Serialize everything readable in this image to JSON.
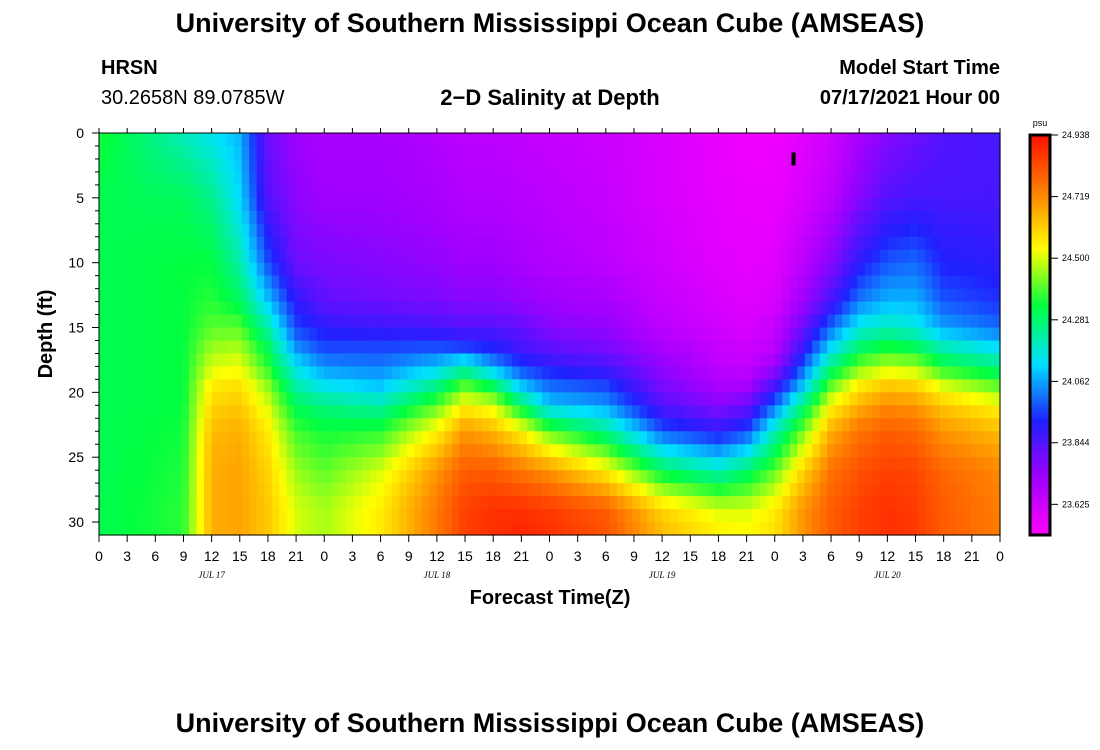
{
  "header": {
    "title": "University of Southern Mississippi Ocean Cube (AMSEAS)",
    "station": "HRSN",
    "coords": "30.2658N  89.0785W",
    "plot_title": "2−D Salinity at Depth",
    "start_label": "Model Start Time",
    "start_value": "07/17/2021 Hour 00"
  },
  "footer": {
    "title": "University of Southern Mississippi Ocean Cube (AMSEAS)"
  },
  "chart_data": {
    "type": "heatmap",
    "title": "2−D Salinity at Depth",
    "xlabel": "Forecast Time(Z)",
    "ylabel": "Depth (ft)",
    "xlim": [
      0,
      96
    ],
    "ylim": [
      31,
      0
    ],
    "x_ticks": [
      {
        "t": 0,
        "label": "0"
      },
      {
        "t": 3,
        "label": "3"
      },
      {
        "t": 6,
        "label": "6"
      },
      {
        "t": 9,
        "label": "9"
      },
      {
        "t": 12,
        "label": "12"
      },
      {
        "t": 15,
        "label": "15"
      },
      {
        "t": 18,
        "label": "18"
      },
      {
        "t": 21,
        "label": "21"
      },
      {
        "t": 24,
        "label": "0"
      },
      {
        "t": 27,
        "label": "3"
      },
      {
        "t": 30,
        "label": "6"
      },
      {
        "t": 33,
        "label": "9"
      },
      {
        "t": 36,
        "label": "12"
      },
      {
        "t": 39,
        "label": "15"
      },
      {
        "t": 42,
        "label": "18"
      },
      {
        "t": 45,
        "label": "21"
      },
      {
        "t": 48,
        "label": "0"
      },
      {
        "t": 51,
        "label": "3"
      },
      {
        "t": 54,
        "label": "6"
      },
      {
        "t": 57,
        "label": "9"
      },
      {
        "t": 60,
        "label": "12"
      },
      {
        "t": 63,
        "label": "15"
      },
      {
        "t": 66,
        "label": "18"
      },
      {
        "t": 69,
        "label": "21"
      },
      {
        "t": 72,
        "label": "0"
      },
      {
        "t": 75,
        "label": "3"
      },
      {
        "t": 78,
        "label": "6"
      },
      {
        "t": 81,
        "label": "9"
      },
      {
        "t": 84,
        "label": "12"
      },
      {
        "t": 87,
        "label": "15"
      },
      {
        "t": 90,
        "label": "18"
      },
      {
        "t": 93,
        "label": "21"
      },
      {
        "t": 96,
        "label": "0"
      }
    ],
    "date_labels": [
      {
        "t": 12,
        "label": "JUL 17"
      },
      {
        "t": 36,
        "label": "JUL 18"
      },
      {
        "t": 60,
        "label": "JUL 19"
      },
      {
        "t": 84,
        "label": "JUL 20"
      }
    ],
    "y_ticks": [
      0,
      5,
      10,
      15,
      20,
      25,
      30
    ],
    "colorbar": {
      "unit": "psu",
      "min": 23.516,
      "max": 24.938,
      "labels": [
        "24.938",
        "24.719",
        "24.500",
        "24.281",
        "24.062",
        "23.844",
        "23.625"
      ],
      "colors": [
        "#ff00ff",
        "#a000ff",
        "#2020ff",
        "#00e0ff",
        "#00ff40",
        "#ffff00",
        "#ff8000",
        "#ff1000"
      ]
    },
    "grid": {
      "times": [
        0,
        9,
        12,
        15,
        18,
        21,
        24,
        30,
        36,
        39,
        42,
        45,
        48,
        54,
        60,
        66,
        69,
        72,
        75,
        78,
        81,
        84,
        87,
        90,
        96
      ],
      "depths": [
        0,
        5,
        10,
        13,
        15,
        16.5,
        18,
        19.5,
        21,
        23,
        26,
        29,
        31
      ],
      "values": [
        [
          24.35,
          24.31,
          24.31,
          24.31,
          24.31,
          24.31,
          24.31,
          24.31,
          24.31,
          24.31,
          24.31,
          24.31,
          24.31
        ],
        [
          24.2,
          24.3,
          24.33,
          24.33,
          24.33,
          24.33,
          24.33,
          24.33,
          24.33,
          24.34,
          24.35,
          24.36,
          24.36
        ],
        [
          24.14,
          24.25,
          24.33,
          24.36,
          24.4,
          24.45,
          24.5,
          24.56,
          24.6,
          24.64,
          24.66,
          24.66,
          24.66
        ],
        [
          24.08,
          24.12,
          24.22,
          24.3,
          24.4,
          24.46,
          24.52,
          24.58,
          24.62,
          24.66,
          24.68,
          24.68,
          24.68
        ],
        [
          23.8,
          23.84,
          23.97,
          24.1,
          24.22,
          24.3,
          24.36,
          24.44,
          24.5,
          24.56,
          24.6,
          24.62,
          24.62
        ],
        [
          23.72,
          23.75,
          23.8,
          23.9,
          23.96,
          24.04,
          24.14,
          24.22,
          24.3,
          24.38,
          24.45,
          24.5,
          24.5
        ],
        [
          23.7,
          23.72,
          23.78,
          23.82,
          23.9,
          23.96,
          24.04,
          24.14,
          24.26,
          24.34,
          24.4,
          24.46,
          24.46
        ],
        [
          23.7,
          23.72,
          23.76,
          23.8,
          23.88,
          23.96,
          24.02,
          24.1,
          24.22,
          24.36,
          24.5,
          24.56,
          24.56
        ],
        [
          23.68,
          23.7,
          23.74,
          23.78,
          23.86,
          23.97,
          24.1,
          24.25,
          24.4,
          24.55,
          24.7,
          24.75,
          24.75
        ],
        [
          23.66,
          23.68,
          23.72,
          23.76,
          23.84,
          23.95,
          24.2,
          24.4,
          24.55,
          24.7,
          24.8,
          24.85,
          24.85
        ],
        [
          23.66,
          23.68,
          23.72,
          23.76,
          23.84,
          23.92,
          24.06,
          24.3,
          24.5,
          24.65,
          24.8,
          24.88,
          24.88
        ],
        [
          23.65,
          23.67,
          23.7,
          23.74,
          23.82,
          23.86,
          23.95,
          24.1,
          24.3,
          24.55,
          24.75,
          24.88,
          24.9
        ],
        [
          23.64,
          23.66,
          23.68,
          23.72,
          23.76,
          23.82,
          23.9,
          24.0,
          24.1,
          24.4,
          24.7,
          24.86,
          24.88
        ],
        [
          23.63,
          23.64,
          23.66,
          23.7,
          23.74,
          23.78,
          23.86,
          23.96,
          24.05,
          24.25,
          24.55,
          24.8,
          24.82
        ],
        [
          23.6,
          23.6,
          23.62,
          23.64,
          23.66,
          23.7,
          23.74,
          23.78,
          23.84,
          23.98,
          24.3,
          24.6,
          24.64
        ],
        [
          23.56,
          23.57,
          23.58,
          23.6,
          23.62,
          23.64,
          23.66,
          23.7,
          23.76,
          23.9,
          24.2,
          24.5,
          24.56
        ],
        [
          23.55,
          23.56,
          23.57,
          23.58,
          23.6,
          23.62,
          23.64,
          23.7,
          23.8,
          23.96,
          24.28,
          24.5,
          24.54
        ],
        [
          23.55,
          23.56,
          23.58,
          23.6,
          23.64,
          23.66,
          23.72,
          23.86,
          24.0,
          24.2,
          24.4,
          24.56,
          24.58
        ],
        [
          23.58,
          23.6,
          23.66,
          23.72,
          23.8,
          23.88,
          23.98,
          24.1,
          24.26,
          24.42,
          24.6,
          24.7,
          24.7
        ],
        [
          23.62,
          23.66,
          23.76,
          23.86,
          24.0,
          24.12,
          24.26,
          24.4,
          24.54,
          24.66,
          24.76,
          24.8,
          24.8
        ],
        [
          23.7,
          23.76,
          23.9,
          24.02,
          24.16,
          24.28,
          24.42,
          24.56,
          24.66,
          24.76,
          24.82,
          24.85,
          24.85
        ],
        [
          23.76,
          23.84,
          23.98,
          24.08,
          24.2,
          24.34,
          24.48,
          24.62,
          24.72,
          24.8,
          24.85,
          24.88,
          24.88
        ],
        [
          23.8,
          23.86,
          24.0,
          24.08,
          24.16,
          24.3,
          24.46,
          24.6,
          24.7,
          24.78,
          24.84,
          24.86,
          24.86
        ],
        [
          23.84,
          23.86,
          23.92,
          23.98,
          24.06,
          24.2,
          24.34,
          24.5,
          24.62,
          24.7,
          24.78,
          24.8,
          24.8
        ],
        [
          23.86,
          23.86,
          23.9,
          23.94,
          24.0,
          24.12,
          24.26,
          24.4,
          24.54,
          24.64,
          24.72,
          24.74,
          24.74
        ]
      ]
    },
    "marker": {
      "t": 74.0,
      "depth_from": 1.5,
      "depth_to": 2.5
    }
  }
}
